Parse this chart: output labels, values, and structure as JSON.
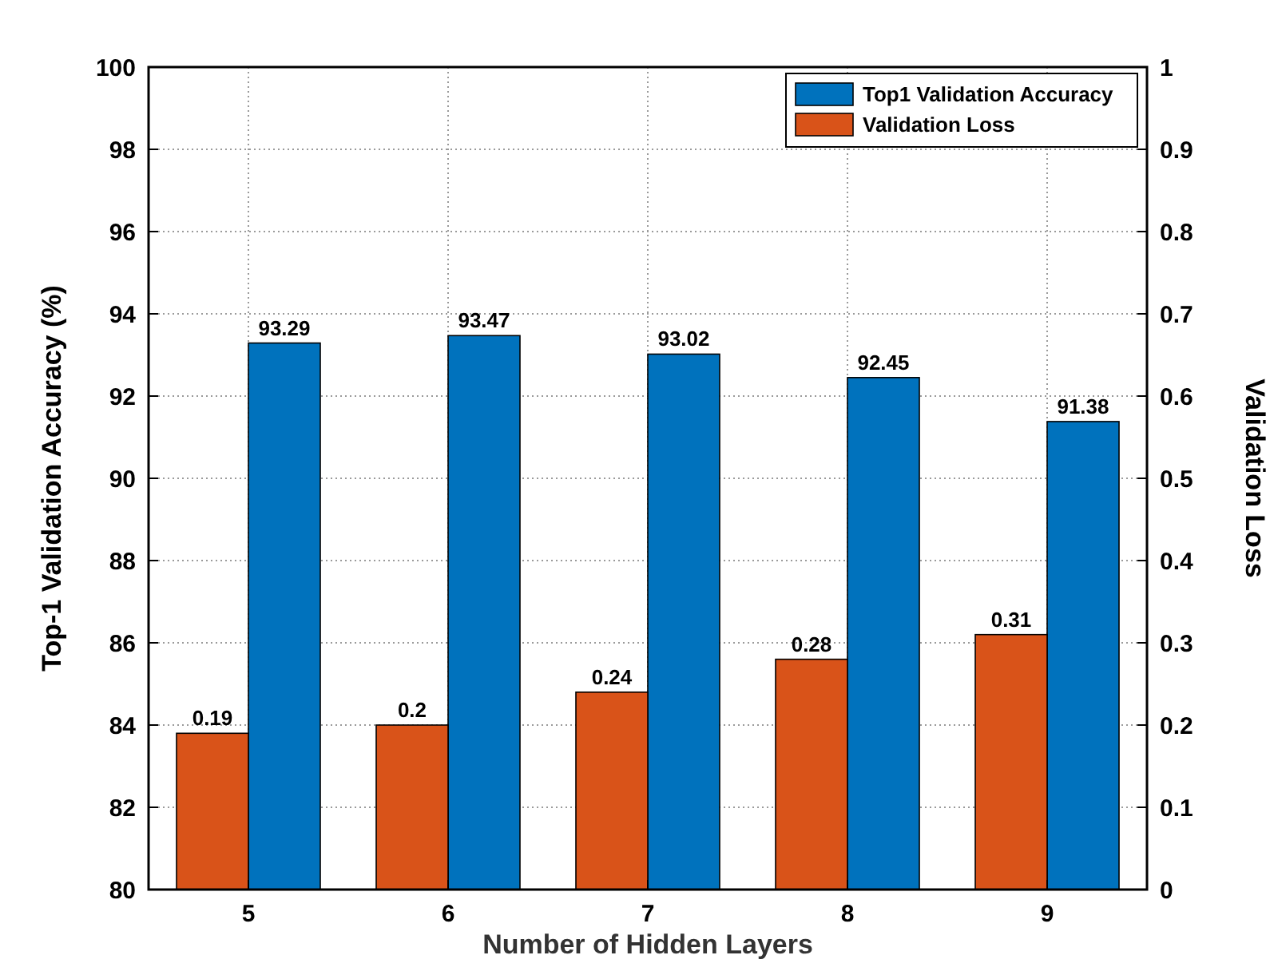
{
  "chart_data": {
    "type": "bar",
    "xlabel": "Number of Hidden Layers",
    "ylabel": "Top-1 Validation Accuracy (%)",
    "y2label": "Validation Loss",
    "categories": [
      "5",
      "6",
      "7",
      "8",
      "9"
    ],
    "series": [
      {
        "name": "Top1 Validation Accuracy",
        "color": "#0072bd",
        "values": [
          93.29,
          93.47,
          93.02,
          92.45,
          91.38
        ]
      },
      {
        "name": "Validation Loss",
        "color": "#d95319",
        "values": [
          0.19,
          0.2,
          0.24,
          0.28,
          0.31
        ],
        "axis": "y2"
      }
    ],
    "ylim": [
      80,
      100
    ],
    "yticks": [
      80,
      82,
      84,
      86,
      88,
      90,
      92,
      94,
      96,
      98,
      100
    ],
    "y2lim": [
      0,
      1
    ],
    "y2ticks": [
      0,
      0.1,
      0.2,
      0.3,
      0.4,
      0.5,
      0.6,
      0.7,
      0.8,
      0.9,
      1
    ],
    "grid": true,
    "legend": "top right",
    "data_labels": true
  }
}
